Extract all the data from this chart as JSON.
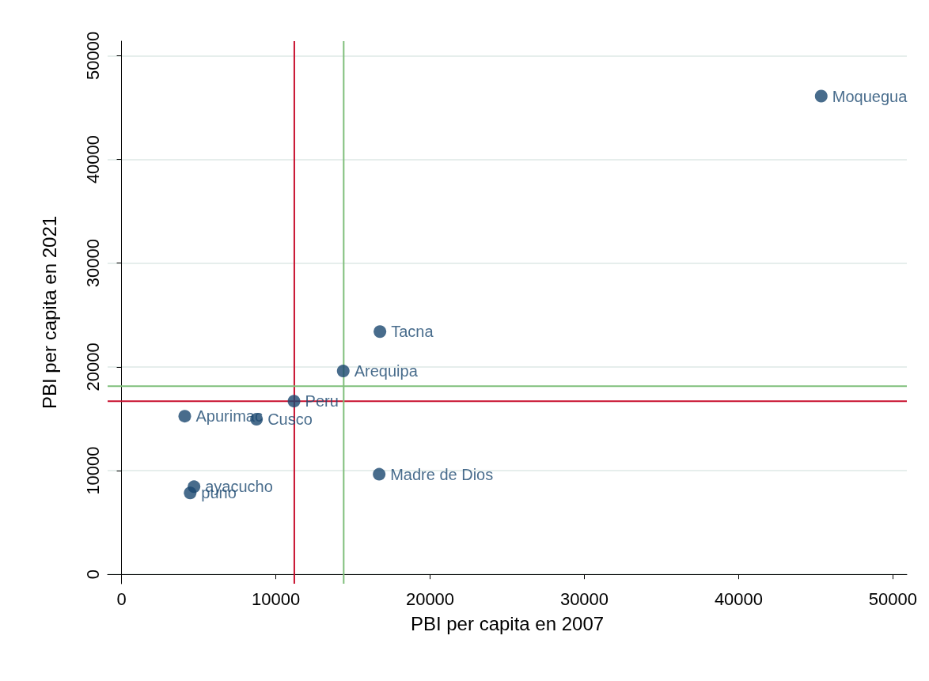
{
  "chart_data": {
    "type": "scatter",
    "xlabel": "PBI per capita en 2007",
    "ylabel": "PBI per capita en 2021",
    "x": [
      45350,
      16750,
      14370,
      11180,
      4100,
      8750,
      16700,
      4700,
      4450
    ],
    "values": [
      46100,
      23400,
      19600,
      16700,
      15250,
      14950,
      9650,
      8450,
      7850
    ],
    "color": "#1a476f",
    "marker": "circle",
    "annotations": [
      {
        "text": "Moquegua",
        "x": 45350,
        "y": 46100
      },
      {
        "text": "Tacna",
        "x": 16750,
        "y": 23400
      },
      {
        "text": "Arequipa",
        "x": 14370,
        "y": 19600
      },
      {
        "text": "Peru",
        "x": 11180,
        "y": 16700
      },
      {
        "text": "Apurimac",
        "x": 4100,
        "y": 15250
      },
      {
        "text": "Cusco",
        "x": 8750,
        "y": 14950
      },
      {
        "text": "Madre de Dios",
        "x": 16700,
        "y": 9650
      },
      {
        "text": "ayacucho",
        "x": 4700,
        "y": 8450
      },
      {
        "text": "puno",
        "x": 4450,
        "y": 7850
      }
    ],
    "ref_lines": [
      {
        "axis": "x",
        "value": 11200,
        "color": "#c8102e"
      },
      {
        "axis": "y",
        "value": 16700,
        "color": "#c8102e"
      },
      {
        "axis": "x",
        "value": 14400,
        "color": "#7fbf7b"
      },
      {
        "axis": "y",
        "value": 18150,
        "color": "#7fbf7b"
      }
    ],
    "xlim": [
      -900,
      50900
    ],
    "ylim": [
      -900,
      51400
    ],
    "xticks": [
      0,
      10000,
      20000,
      30000,
      40000,
      50000
    ],
    "yticks": [
      0,
      10000,
      20000,
      30000,
      40000,
      50000
    ],
    "grid": "y"
  }
}
